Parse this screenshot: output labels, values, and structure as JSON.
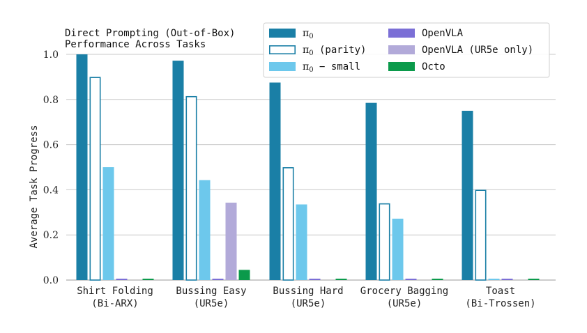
{
  "chart_data": {
    "type": "bar",
    "title": "Direct Prompting (Out-of-Box)\nPerformance Across Tasks",
    "ylabel": "Average Task Progress",
    "xlabel": "",
    "ylim": [
      0,
      1.0
    ],
    "yticks": [
      "0.0",
      "0.2",
      "0.4",
      "0.6",
      "0.8",
      "1.0"
    ],
    "grid": "horizontal",
    "legend_position": "top-right",
    "categories": [
      "Shirt Folding\n(Bi-ARX)",
      "Bussing Easy\n(UR5e)",
      "Bussing Hard\n(UR5e)",
      "Grocery Bagging\n(UR5e)",
      "Toast\n(Bi-Trossen)"
    ],
    "series": [
      {
        "key": "pi0",
        "name_main": "π",
        "name_sub": "0",
        "name_rest": "",
        "color": "#1a7fa6",
        "style": "filled",
        "values": [
          1.0,
          0.972,
          0.875,
          0.785,
          0.75
        ]
      },
      {
        "key": "pi0_parity",
        "name_main": "π",
        "name_sub": "0",
        "name_rest": " (parity)",
        "color": "#1a7fa6",
        "style": "outline",
        "values": [
          0.9,
          0.815,
          0.5,
          0.34,
          0.4
        ]
      },
      {
        "key": "pi0_small",
        "name_main": "π",
        "name_sub": "0",
        "name_rest": " − small",
        "color": "#6dc8ec",
        "style": "filled",
        "values": [
          0.5,
          0.443,
          0.335,
          0.272,
          0.0
        ]
      },
      {
        "key": "openvla",
        "name_main": "OpenVLA",
        "name_sub": "",
        "name_rest": "",
        "color": "#7b6fd6",
        "style": "filled",
        "values": [
          0.0,
          0.0,
          0.0,
          0.0,
          0.0
        ]
      },
      {
        "key": "openvla_ur5",
        "name_main": "OpenVLA (UR5e only)",
        "name_sub": "",
        "name_rest": "",
        "color": "#b2aad9",
        "style": "filled",
        "values": [
          null,
          0.343,
          null,
          null,
          null
        ]
      },
      {
        "key": "octo",
        "name_main": "Octo",
        "name_sub": "",
        "name_rest": "",
        "color": "#0b9a4b",
        "style": "filled",
        "values": [
          0.0,
          0.045,
          0.0,
          0.0,
          0.0
        ]
      }
    ]
  }
}
